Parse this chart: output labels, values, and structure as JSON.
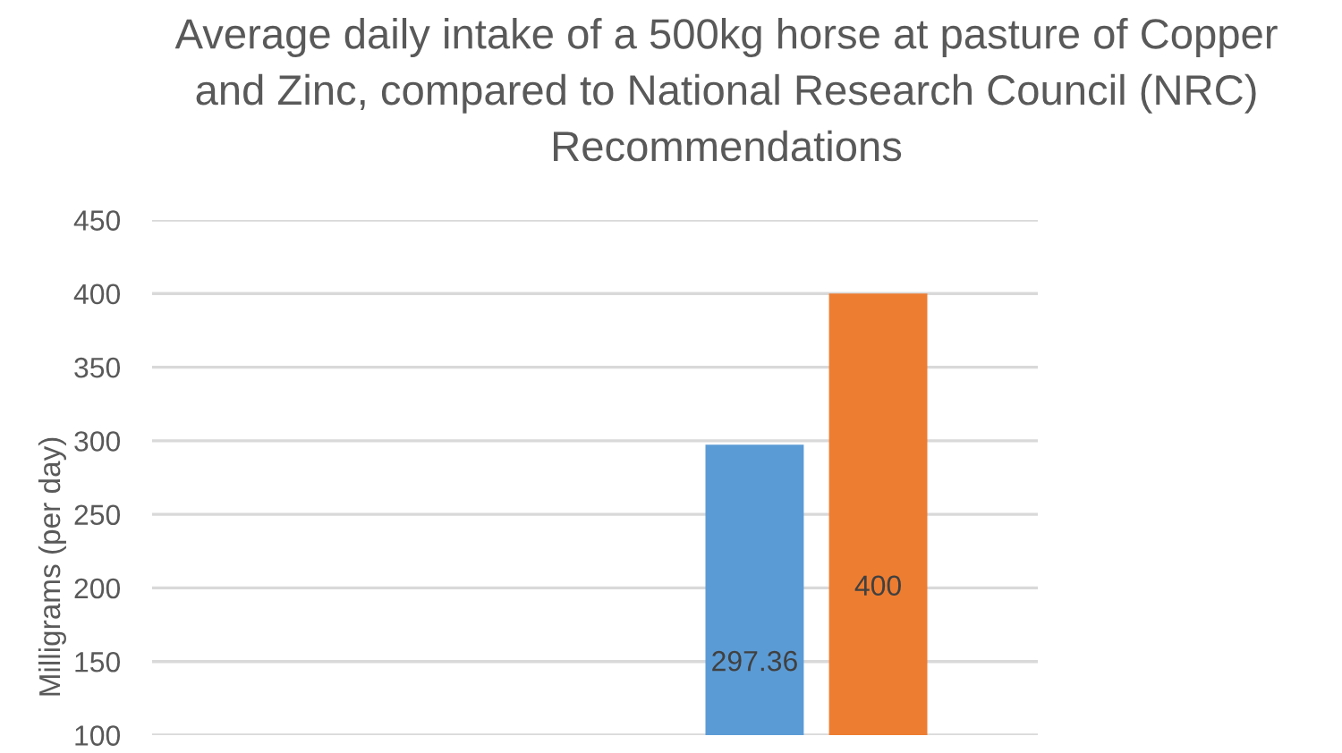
{
  "chart_data": {
    "type": "bar",
    "title": "Average daily intake of a 500kg horse at pasture of Copper and Zinc, compared to National Research Council (NRC) Recommendations",
    "ylabel": "Milligrams (per day)",
    "categories": [
      null,
      null
    ],
    "series": [
      {
        "color": "#5b9bd5",
        "values": [
          null,
          297.36
        ]
      },
      {
        "color": "#ed7d31",
        "values": [
          null,
          400
        ]
      }
    ],
    "ylim": [
      100,
      450
    ],
    "yticks": [
      100,
      150,
      200,
      250,
      300,
      350,
      400,
      450
    ],
    "grid": "y",
    "data_labels": true,
    "tick_labels": "y"
  }
}
